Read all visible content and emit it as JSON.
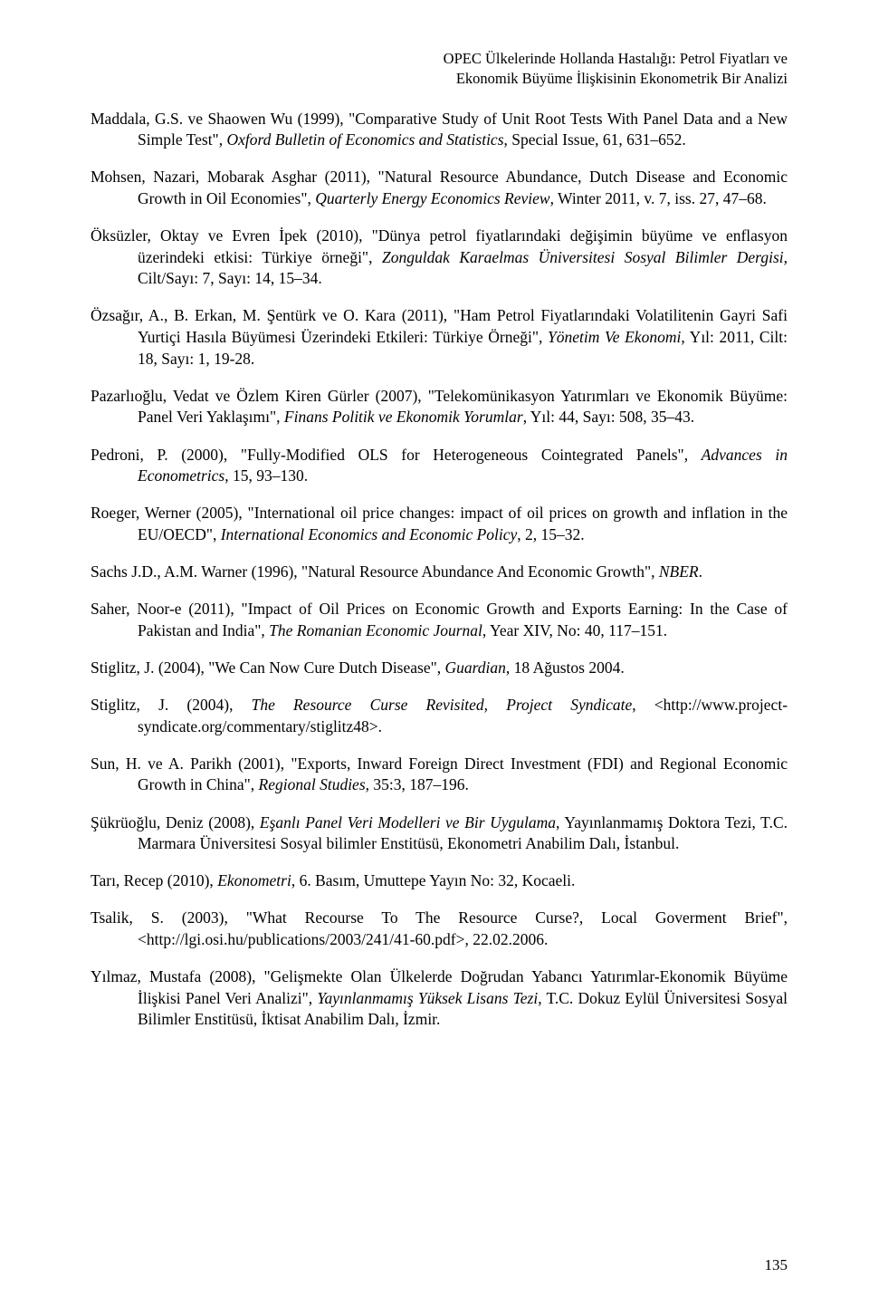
{
  "header": {
    "line1": "OPEC Ülkelerinde Hollanda Hastalığı: Petrol Fiyatları ve",
    "line2": "Ekonomik Büyüme İlişkisinin Ekonometrik Bir Analizi"
  },
  "refs": [
    {
      "pre": "Maddala, G.S. ve Shaowen Wu (1999), \"Comparative Study of Unit Root Tests With Panel Data and a New Simple Test\", ",
      "it": "Oxford Bulletin of Economics and Statistics",
      "post": ", Special Issue, 61, 631–652."
    },
    {
      "pre": "Mohsen, Nazari, Mobarak Asghar (2011), \"Natural Resource Abundance, Dutch Disease and Economic Growth in Oil Economies\", ",
      "it": "Quarterly Energy Economics Review",
      "post": ", Winter 2011, v. 7, iss. 27, 47–68."
    },
    {
      "pre": "Öksüzler, Oktay ve Evren İpek (2010), \"Dünya petrol fiyatlarındaki değişimin büyüme ve enflasyon üzerindeki etkisi: Türkiye örneği\", ",
      "it": "Zonguldak Karaelmas Üniversitesi Sosyal Bilimler Dergisi",
      "post": ", Cilt/Sayı: 7, Sayı: 14, 15–34."
    },
    {
      "pre": "Özsağır, A., B. Erkan, M. Şentürk ve O. Kara (2011), \"Ham Petrol Fiyatlarındaki Volatilitenin Gayri Safi Yurtiçi Hasıla Büyümesi Üzerindeki Etkileri: Türkiye Örneği\", ",
      "it": "Yönetim Ve Ekonomi",
      "post": ", Yıl: 2011, Cilt: 18, Sayı: 1, 19-28."
    },
    {
      "pre": "Pazarlıoğlu, Vedat ve Özlem Kiren Gürler (2007), \"Telekomünikasyon Yatırımları ve Ekonomik Büyüme: Panel Veri Yaklaşımı\", ",
      "it": "Finans Politik ve Ekonomik Yorumlar",
      "post": ", Yıl: 44, Sayı: 508, 35–43."
    },
    {
      "pre": "Pedroni, P. (2000), \"Fully-Modified OLS for Heterogeneous Cointegrated Panels\", ",
      "it": "Advances in Econometrics",
      "post": ", 15, 93–130."
    },
    {
      "pre": "Roeger, Werner (2005), \"International oil price changes: impact of oil prices on growth and inflation in the EU/OECD\", ",
      "it": "International Economics and Economic Policy",
      "post": ", 2, 15–32."
    },
    {
      "pre": "Sachs J.D., A.M. Warner (1996), \"Natural Resource Abundance And Economic Growth\", ",
      "it": "NBER",
      "post": "."
    },
    {
      "pre": "Saher, Noor-e (2011), \"Impact of Oil Prices on Economic Growth and Exports Earning: In the Case of Pakistan and India\", ",
      "it": "The Romanian Economic Journal",
      "post": ", Year XIV, No: 40, 117–151."
    },
    {
      "pre": "Stiglitz, J. (2004), \"We Can Now Cure Dutch Disease\", ",
      "it": "Guardian",
      "post": ", 18 Ağustos 2004."
    },
    {
      "pre": "Stiglitz, J. (2004), ",
      "it": "The Resource Curse Revisited, Project Syndicate",
      "post": ", <http://www.project-syndicate.org/commentary/stiglitz48>."
    },
    {
      "pre": "Sun, H. ve A. Parikh (2001), \"Exports, Inward Foreign Direct Investment (FDI) and Regional Economic Growth in China\", ",
      "it": "Regional Studies",
      "post": ", 35:3, 187–196."
    },
    {
      "pre": "Şükrüoğlu, Deniz (2008), ",
      "it": "Eşanlı Panel Veri Modelleri ve Bir Uygulama",
      "post": ", Yayınlanmamış Doktora Tezi, T.C. Marmara Üniversitesi Sosyal bilimler Enstitüsü, Ekonometri Anabilim Dalı, İstanbul."
    },
    {
      "pre": "Tarı, Recep (2010), ",
      "it": "Ekonometri",
      "post": ", 6. Basım, Umuttepe Yayın No: 32, Kocaeli."
    },
    {
      "pre": "Tsalik, S. (2003), \"What Recourse To The Resource Curse?, Local Goverment Brief\", <http://lgi.osi.hu/publications/2003/241/41-60.pdf>, 22.02.2006.",
      "it": "",
      "post": ""
    },
    {
      "pre": "Yılmaz, Mustafa (2008), \"Gelişmekte Olan Ülkelerde Doğrudan Yabancı Yatırımlar-Ekonomik Büyüme İlişkisi Panel Veri Analizi\", ",
      "it": "Yayınlanmamış Yüksek Lisans Tezi",
      "post": ", T.C. Dokuz Eylül Üniversitesi Sosyal Bilimler Enstitüsü, İktisat Anabilim Dalı, İzmir."
    }
  ],
  "page_number": "135"
}
